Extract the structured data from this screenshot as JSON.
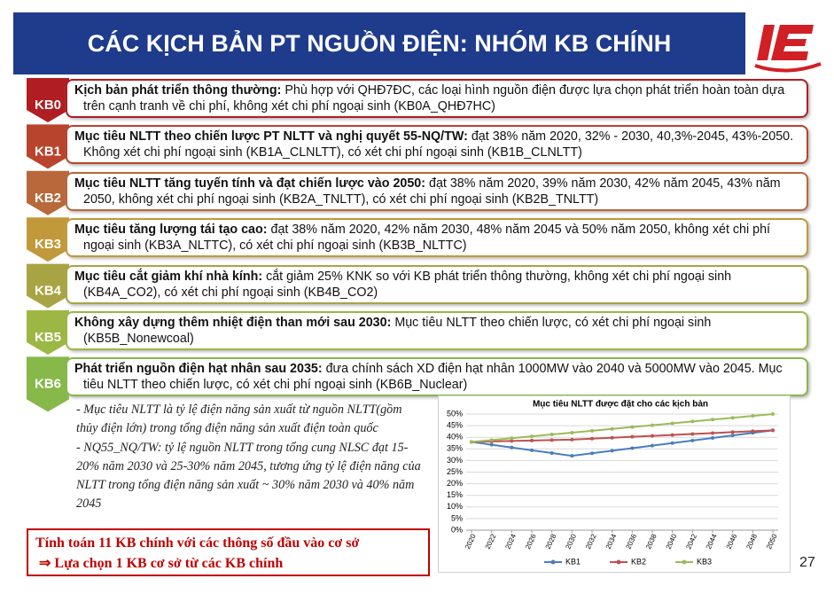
{
  "header": {
    "title": "CÁC KỊCH BẢN PT NGUỒN ĐIỆN: NHÓM KB CHÍNH"
  },
  "scenarios": [
    {
      "label": "KB0",
      "color": "#b01e23",
      "bold": "Kịch bản phát triển thông thường:",
      "text": " Phù hợp với QHĐ7ĐC, các loại hình nguồn điện được lựa chọn phát triển hoàn toàn dựa trên cạnh tranh về chi phí, không xét chi phí ngoại sinh (KB0A_QHĐ7HC)"
    },
    {
      "label": "KB1",
      "color": "#b8442e",
      "bold": "Mục tiêu NLTT theo chiến lược PT NLTT và nghị quyết 55-NQ/TW:",
      "text": " đạt 38% năm 2020, 32% - 2030, 40,3%-2045, 43%-2050. Không xét chi phí ngoại sinh (KB1A_CLNLTT), có xét chi phí ngoại sinh (KB1B_CLNLTT)"
    },
    {
      "label": "KB2",
      "color": "#b8683a",
      "bold": "Mục tiêu NLTT tăng tuyến tính và đạt chiến lược vào 2050:",
      "text": " đạt 38% năm 2020, 39% năm 2030, 42% năm 2045, 43% năm 2050, không xét chi phí ngoại sinh (KB2A_TNLTT), có xét chi phí ngoại sinh (KB2B_TNLTT)"
    },
    {
      "label": "KB3",
      "color": "#c2993a",
      "bold": "Mục tiêu tăng lượng tái tạo cao:",
      "text": " đạt 38% năm 2020, 42% năm 2030, 48% năm 2045 và 50% năm 2050, không xét chi phí ngoại sinh (KB3A_NLTTC), có xét chi phí ngoại sinh (KB3B_NLTTC)"
    },
    {
      "label": "KB4",
      "color": "#a9a443",
      "bold": "Mục tiêu cắt giảm khí nhà kính:",
      "text": " cắt giảm 25% KNK so với KB phát triển thông thường, không xét chi phí ngoại sinh (KB4A_CO2), có xét chi phí ngoại sinh (KB4B_CO2)"
    },
    {
      "label": "KB5",
      "color": "#9cb744",
      "bold": "Không xây dựng thêm nhiệt điện than mới sau 2030:",
      "text": " Mục tiêu NLTT theo chiến lược, có xét chi phí ngoại sinh (KB5B_Nonewcoal)"
    },
    {
      "label": "KB6",
      "color": "#86b84a",
      "bold": "Phát triển nguồn điện hạt nhân sau 2035:",
      "text": " đưa chính sách XD điện hạt nhân 1000MW vào 2040 và 5000MW vào 2045. Mục tiêu NLTT theo chiến lược, có xét chi phí ngoại sinh (KB6B_Nuclear)"
    }
  ],
  "notes": [
    "- Mục tiêu NLTT là tỷ lệ điện năng sản xuất từ nguồn NLTT(gồm thủy điện lớn) trong tổng điện năng sản xuất điện toàn quốc",
    "- NQ55_NQ/TW:  tỷ lệ nguồn NLTT trong tổng cung NLSC đạt 15-20% năm 2030 và 25-30% năm 2045, tương ứng tỷ lệ điện năng của NLTT trong tổng điện năng sản xuất ~ 30% năm 2030 và 40% năm 2045"
  ],
  "conclusion": [
    "Tính toán 11 KB chính với các thông số đầu vào cơ sở",
    "⇒ Lựa chọn 1 KB cơ sở từ các KB chính"
  ],
  "page_number": "27",
  "chart_data": {
    "type": "line",
    "title": "Mục tiêu NLTT được đặt cho các kịch bản",
    "x": [
      2020,
      2022,
      2024,
      2026,
      2028,
      2030,
      2032,
      2034,
      2036,
      2038,
      2040,
      2042,
      2044,
      2046,
      2048,
      2050
    ],
    "xlim": [
      2020,
      2050
    ],
    "xticks": [
      2020,
      2022,
      2024,
      2026,
      2028,
      2030,
      2032,
      2034,
      2036,
      2038,
      2040,
      2042,
      2044,
      2046,
      2048,
      2050
    ],
    "ylim": [
      0,
      50
    ],
    "yticks": [
      {
        "value": 0,
        "label": "0%"
      },
      {
        "value": 5,
        "label": "5%"
      },
      {
        "value": 10,
        "label": "10%"
      },
      {
        "value": 15,
        "label": "15%"
      },
      {
        "value": 20,
        "label": "20%"
      },
      {
        "value": 25,
        "label": "25%"
      },
      {
        "value": 30,
        "label": "30%"
      },
      {
        "value": 35,
        "label": "35%"
      },
      {
        "value": 40,
        "label": "40%"
      },
      {
        "value": 45,
        "label": "45%"
      },
      {
        "value": 50,
        "label": "50%"
      }
    ],
    "grid": true,
    "legend": "bottom",
    "series": [
      {
        "name": "KB1",
        "color": "#4a7ebb",
        "values": [
          38,
          36.8,
          35.6,
          34.4,
          33.2,
          32,
          33.1,
          34.2,
          35.3,
          36.4,
          37.5,
          38.6,
          39.7,
          40.8,
          41.9,
          43
        ]
      },
      {
        "name": "KB2",
        "color": "#c0504d",
        "values": [
          38,
          38.2,
          38.4,
          38.6,
          38.8,
          39,
          39.4,
          39.8,
          40.2,
          40.6,
          41,
          41.4,
          41.8,
          42.2,
          42.6,
          43
        ]
      },
      {
        "name": "KB3",
        "color": "#9bbb59",
        "values": [
          38,
          38.8,
          39.6,
          40.4,
          41.2,
          42,
          42.8,
          43.6,
          44.4,
          45.2,
          46,
          46.8,
          47.6,
          48.4,
          49.2,
          50
        ]
      }
    ]
  }
}
